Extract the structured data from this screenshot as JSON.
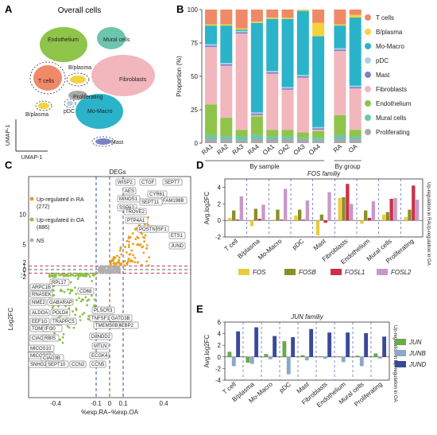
{
  "panels": {
    "a": {
      "letter": "A",
      "title": "Overall cells",
      "xlabel": "UMAP-1",
      "ylabel": "UMAP-1"
    },
    "b": {
      "letter": "B"
    },
    "c": {
      "letter": "C"
    },
    "d": {
      "letter": "D"
    },
    "e": {
      "letter": "E"
    }
  },
  "colors": {
    "T cells": "#f08968",
    "B/plasma": "#f2d33c",
    "Mo-Macro": "#2bb3c9",
    "pDC": "#a8d0ea",
    "Mast": "#7b82c4",
    "Fibroblasts": "#f2b6bd",
    "Endothelium": "#8ec44a",
    "Mural cells": "#6cc5ad",
    "Proliferating": "#a9a9a9"
  },
  "umap_clusters": [
    {
      "name": "Endothelium",
      "label": "Endothelium",
      "color": "#8ec44a"
    },
    {
      "name": "Mural cells",
      "label": "Mural cells",
      "color": "#6cc5ad"
    },
    {
      "name": "B/plasma",
      "label": "B/plasma",
      "color": "#f2d33c"
    },
    {
      "name": "T cells",
      "label": "T cells",
      "color": "#f08968"
    },
    {
      "name": "Fibroblasts",
      "label": "Fibroblasts",
      "color": "#f2b6bd"
    },
    {
      "name": "Proliferating",
      "label": "Proliferating",
      "color": "#a9a9a9"
    },
    {
      "name": "B/plasma-2",
      "label": "B/plasma",
      "color": "#f2d33c"
    },
    {
      "name": "pDC",
      "label": "pDC",
      "color": "#a8d0ea"
    },
    {
      "name": "Mo-Macro",
      "label": "Mo-Macro",
      "color": "#2bb3c9"
    },
    {
      "name": "Mast",
      "label": "Mast",
      "color": "#7b82c4"
    }
  ],
  "chart_data": [
    {
      "id": "B",
      "type": "bar",
      "stacked": true,
      "ylabel": "Proportion (%)",
      "ylim": [
        0,
        100
      ],
      "yticks": [
        "0",
        "25",
        "50",
        "75",
        "100"
      ],
      "groups": [
        {
          "label": "By sample",
          "categories": [
            "RA1",
            "RA2",
            "RA3",
            "RA4",
            "OA1",
            "OA2",
            "OA3",
            "OA4"
          ]
        },
        {
          "label": "By group",
          "categories": [
            "RA",
            "OA"
          ]
        }
      ],
      "legend_position": "right",
      "series": [
        {
          "name": "Proliferating",
          "values": [
            3,
            3,
            2,
            3,
            3,
            3,
            3,
            2,
            3,
            3
          ]
        },
        {
          "name": "Mural cells",
          "values": [
            3,
            2,
            3,
            3,
            2,
            2,
            1,
            2,
            3,
            2
          ]
        },
        {
          "name": "Endothelium",
          "values": [
            23,
            14,
            5,
            14,
            5,
            5,
            4,
            5,
            15,
            5
          ]
        },
        {
          "name": "Fibroblasts",
          "values": [
            43,
            39,
            72,
            1,
            42,
            30,
            41,
            1,
            48,
            31
          ]
        },
        {
          "name": "Mast",
          "values": [
            1,
            1,
            1,
            1,
            1,
            1,
            1,
            1,
            1,
            1
          ]
        },
        {
          "name": "pDC",
          "values": [
            1,
            1,
            1,
            1,
            1,
            1,
            1,
            1,
            1,
            1
          ]
        },
        {
          "name": "Mo-Macro",
          "values": [
            14,
            28,
            1,
            67,
            39,
            51,
            48,
            68,
            17,
            51
          ]
        },
        {
          "name": "B/plasma",
          "values": [
            1,
            1,
            1,
            1,
            1,
            1,
            1,
            10,
            1,
            2
          ]
        },
        {
          "name": "T cells",
          "values": [
            11,
            11,
            14,
            9,
            6,
            6,
            0,
            10,
            11,
            4
          ]
        }
      ]
    },
    {
      "id": "C",
      "type": "scatter",
      "title": "DEGs",
      "xlabel": "%exp.RA−%exp.OA",
      "ylabel": "Log2FC",
      "xlim": [
        -0.6,
        0.6
      ],
      "ylim": [
        -5,
        16
      ],
      "xticks": [
        "-0.4",
        "-0.1",
        "0",
        "0.1",
        "0.4"
      ],
      "yticks": [
        "10",
        "5",
        "2",
        "1",
        "0",
        "-1",
        "-2"
      ],
      "legend": [
        {
          "label": "Up-regulated in RA",
          "count": "(272)",
          "color": "#e8a020"
        },
        {
          "label": "Up-regulated in OA",
          "count": "(886)",
          "color": "#8cc24a"
        },
        {
          "label": "NS",
          "count": "",
          "color": "#b0b0b0"
        }
      ],
      "ra_genes": [
        "WISP2",
        "CTGF",
        "SEPT7",
        "AES",
        "CYR61",
        "FAM198B",
        "SEPT11",
        "MINOS1",
        "SSPA2",
        "TROVE2",
        "PTP4A1",
        "TMSF1",
        "POSTN",
        "ETS1",
        "JUND"
      ],
      "oa_genes": [
        "RPL17",
        "ARPC1B",
        "RNASEK",
        "CD68",
        "NME2",
        "GABARAP",
        "ALDOA",
        "POLD4",
        "EEF1G",
        "TRAPPC5",
        "PLSCR3",
        "TNFSF13",
        "GATD3B",
        "EIF4EBP2",
        "TMEM50B",
        "TOMM6",
        "IFI30",
        "D8NDD2",
        "CIAO3",
        "RBIS",
        "MTLN",
        "MICOS10",
        "ECGK4",
        "MICOS13",
        "CIAO3B",
        "SNHG29",
        "SEPT10",
        "CCN2",
        "CCN5"
      ]
    },
    {
      "id": "D",
      "type": "bar",
      "title": "FOS familiy",
      "ylabel": "Avg.log2FC",
      "ylim": [
        -2,
        5
      ],
      "yticks": [
        "-2",
        "0",
        "2",
        "4"
      ],
      "side_labels": [
        "Up-regulation in RA",
        "Up-regulation in OA"
      ],
      "categories": [
        "T cell",
        "B/plasma",
        "Mo-Macro",
        "pDC",
        "Mast",
        "Fibroblasts",
        "Endothelium",
        "Mural cells",
        "Proliferating"
      ],
      "series": [
        {
          "name": "FOS",
          "color": "#e8cc3c",
          "values": [
            0.3,
            -0.7,
            0.1,
            0.6,
            -1.8,
            2.7,
            -0.4,
            0.7,
            0.4
          ]
        },
        {
          "name": "FOSB",
          "color": "#8d8d2a",
          "values": [
            1.2,
            1.4,
            1.3,
            1.3,
            0.7,
            2.8,
            1.2,
            1.0,
            1.3
          ]
        },
        {
          "name": "FOSL1",
          "color": "#c8324a",
          "values": [
            0.1,
            0.2,
            0.1,
            0.1,
            -0.3,
            4.4,
            0.3,
            2.6,
            4.2
          ]
        },
        {
          "name": "FOSL2",
          "color": "#c898c8",
          "values": [
            2.9,
            1.9,
            3.8,
            2.4,
            3.4,
            2.0,
            2.3,
            2.7,
            2.5
          ]
        }
      ]
    },
    {
      "id": "E",
      "type": "bar",
      "title": "JUN familiy",
      "ylabel": "Avg.log2FC",
      "ylim": [
        -4,
        6
      ],
      "yticks": [
        "-4",
        "-2",
        "0",
        "2",
        "4",
        "6"
      ],
      "side_labels": [
        "Up-regulation in RA",
        "Up-regulation in OA"
      ],
      "categories": [
        "T cell",
        "B/plasma",
        "Mo-Macro",
        "pDC",
        "Mast",
        "Fibroblasts",
        "Endothelium",
        "Mural cells",
        "Proliferating"
      ],
      "series": [
        {
          "name": "JUN",
          "color": "#6aaa4a",
          "values": [
            0.9,
            -1.0,
            0.5,
            2.7,
            0.3,
            0.1,
            0.1,
            0.2,
            0.6
          ]
        },
        {
          "name": "JUNB",
          "color": "#8aa8c8",
          "values": [
            -1.6,
            -1.2,
            -0.4,
            -3.0,
            -0.6,
            -0.3,
            -0.9,
            -1.6,
            -0.3
          ]
        },
        {
          "name": "JUND",
          "color": "#3a4a9a",
          "values": [
            4.4,
            5.1,
            3.6,
            3.4,
            4.8,
            4.2,
            4.2,
            4.1,
            3.5
          ]
        }
      ]
    }
  ]
}
